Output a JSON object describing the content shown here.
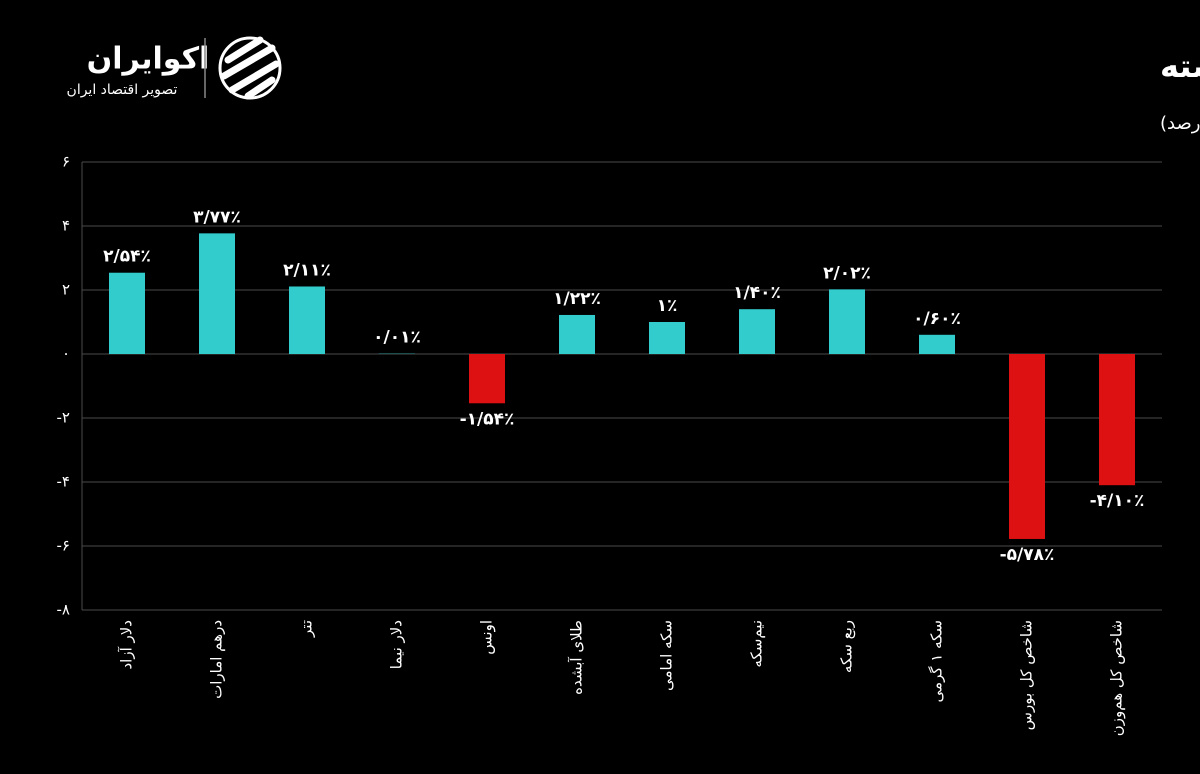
{
  "logo": {
    "name": "اکوایران",
    "tagline": "تصویر اقتصاد ایران"
  },
  "chart_data": {
    "type": "bar",
    "title": "تغییرات بازارها در هفته گذشته",
    "subtitle": "(واحد: درصد)",
    "categories": [
      "دلار آزاد",
      "درهم امارات",
      "تتر",
      "دلار نیما",
      "اونس",
      "طلای آبشده",
      "سکه امامی",
      "نیم‌سکه",
      "ربع سکه",
      "سکه ۱ گرمی",
      "شاخص کل بورس",
      "شاخص کل هم‌وزن"
    ],
    "values": [
      2.54,
      3.77,
      2.11,
      0.01,
      -1.54,
      1.22,
      1,
      1.4,
      2.02,
      0.6,
      -5.78,
      -4.1
    ],
    "value_labels": [
      "۲/۵۴٪",
      "۳/۷۷٪",
      "۲/۱۱٪",
      "۰/۰۱٪",
      "-۱/۵۴٪",
      "۱/۲۲٪",
      "۱٪",
      "۱/۴۰٪",
      "۲/۰۲٪",
      "۰/۶۰٪",
      "-۵/۷۸٪",
      "-۴/۱۰٪"
    ],
    "color": "#33cccc",
    "negative_color": "#dd1111",
    "ylim": [
      -8,
      6
    ],
    "yticks": [
      {
        "value": 6,
        "label": "۶"
      },
      {
        "value": 4,
        "label": "۴"
      },
      {
        "value": 2,
        "label": "۲"
      },
      {
        "value": 0,
        "label": "۰"
      },
      {
        "value": -2,
        "label": "-۲"
      },
      {
        "value": -4,
        "label": "-۴"
      },
      {
        "value": -6,
        "label": "-۶"
      },
      {
        "value": -8,
        "label": "-۸"
      }
    ],
    "grid": true
  }
}
